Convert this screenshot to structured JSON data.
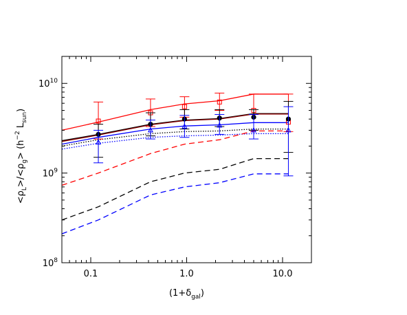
{
  "chart_data": {
    "type": "line",
    "xscale": "log",
    "yscale": "log",
    "xlim": [
      0.05,
      20
    ],
    "ylim": [
      100000000,
      20000000000
    ],
    "xticks": [
      0.1,
      1.0,
      10.0
    ],
    "xtick_labels": [
      "0.1",
      "1.0",
      "10.0"
    ],
    "yticks": [
      100000000,
      1000000000,
      10000000000
    ],
    "ytick_labels": [
      {
        "base": "10",
        "exp": "8"
      },
      {
        "base": "10",
        "exp": "9"
      },
      {
        "base": "10",
        "exp": "10"
      }
    ],
    "xlabel": {
      "pre": "(1+δ",
      "sub": "gal",
      "post": ")"
    },
    "ylabel": {
      "pre": "<ρ",
      "sub1": "L",
      "mid": ">/<ρ",
      "sub2": "g",
      "mid2": "> (h",
      "sup": "−2",
      "mid3": " L",
      "sub3": "sun",
      "post": ")"
    },
    "grid": false,
    "legend": "none",
    "x": [
      0.05,
      0.12,
      0.42,
      0.95,
      2.2,
      5.0,
      11.5
    ],
    "series": [
      {
        "color": "#ff0000",
        "style": "solid",
        "values": [
          3000000000.0,
          3700000000.0,
          5100000000.0,
          5900000000.0,
          6400000000.0,
          7600000000.0,
          7600000000.0
        ]
      },
      {
        "color": "#000000",
        "style": "solid",
        "values": [
          2300000000.0,
          2700000000.0,
          3500000000.0,
          3900000000.0,
          4050000000.0,
          4600000000.0,
          4600000000.0
        ]
      },
      {
        "color": "#8b0000",
        "style": "solid",
        "values": [
          2250000000.0,
          2650000000.0,
          3450000000.0,
          3850000000.0,
          4000000000.0,
          4550000000.0,
          4550000000.0
        ]
      },
      {
        "color": "#0000ff",
        "style": "solid",
        "values": [
          2100000000.0,
          2500000000.0,
          3100000000.0,
          3350000000.0,
          3450000000.0,
          3650000000.0,
          3650000000.0
        ]
      },
      {
        "color": "#000000",
        "style": "dotted",
        "values": [
          2000000000.0,
          2350000000.0,
          2750000000.0,
          2900000000.0,
          2950000000.0,
          3100000000.0,
          3100000000.0
        ]
      },
      {
        "color": "#0000ff",
        "style": "dotted",
        "values": [
          1850000000.0,
          2150000000.0,
          2500000000.0,
          2600000000.0,
          2650000000.0,
          2750000000.0,
          2750000000.0
        ]
      },
      {
        "color": "#ff0000",
        "style": "dashed",
        "values": [
          730000000.0,
          1000000000.0,
          1650000000.0,
          2100000000.0,
          2350000000.0,
          2950000000.0,
          2950000000.0
        ]
      },
      {
        "color": "#000000",
        "style": "dashed",
        "values": [
          300000000.0,
          420000000.0,
          800000000.0,
          1000000000.0,
          1100000000.0,
          1450000000.0,
          1450000000.0
        ]
      },
      {
        "color": "#0000ff",
        "style": "dashed",
        "values": [
          210000000.0,
          300000000.0,
          570000000.0,
          700000000.0,
          780000000.0,
          980000000.0,
          980000000.0
        ]
      }
    ],
    "errorbars": [
      {
        "color": "#ff0000",
        "marker": "open-square",
        "x": [
          0.12,
          0.42,
          0.95,
          2.2,
          5.0,
          11.5
        ],
        "y": [
          3800000000.0,
          4700000000.0,
          5500000000.0,
          6200000000.0,
          5000000000.0,
          3700000000.0
        ],
        "lo": [
          2400000000.0,
          3300000000.0,
          4200000000.0,
          5000000000.0,
          3000000000.0,
          2900000000.0
        ],
        "hi": [
          6200000000.0,
          6700000000.0,
          7100000000.0,
          7800000000.0,
          7600000000.0,
          7600000000.0
        ]
      },
      {
        "color": "#000000",
        "marker": "filled-circle",
        "x": [
          0.12,
          0.42,
          0.95,
          2.2,
          5.0,
          11.5
        ],
        "y": [
          2700000000.0,
          3500000000.0,
          4000000000.0,
          4100000000.0,
          4200000000.0,
          4000000000.0
        ],
        "lo": [
          1500000000.0,
          2600000000.0,
          3100000000.0,
          3300000000.0,
          3000000000.0,
          1700000000.0
        ],
        "hi": [
          3500000000.0,
          4700000000.0,
          5100000000.0,
          5100000000.0,
          5100000000.0,
          6300000000.0
        ]
      },
      {
        "color": "#0000ff",
        "marker": "open-triangle",
        "x": [
          0.12,
          0.42,
          0.95,
          2.2,
          5.0,
          11.5
        ],
        "y": [
          2200000000.0,
          3000000000.0,
          3300000000.0,
          3400000000.0,
          3000000000.0,
          3000000000.0
        ],
        "lo": [
          1300000000.0,
          2400000000.0,
          2500000000.0,
          2700000000.0,
          2400000000.0,
          930000000.0
        ],
        "hi": [
          3000000000.0,
          3900000000.0,
          4400000000.0,
          4500000000.0,
          4500000000.0,
          5500000000.0
        ]
      }
    ]
  }
}
